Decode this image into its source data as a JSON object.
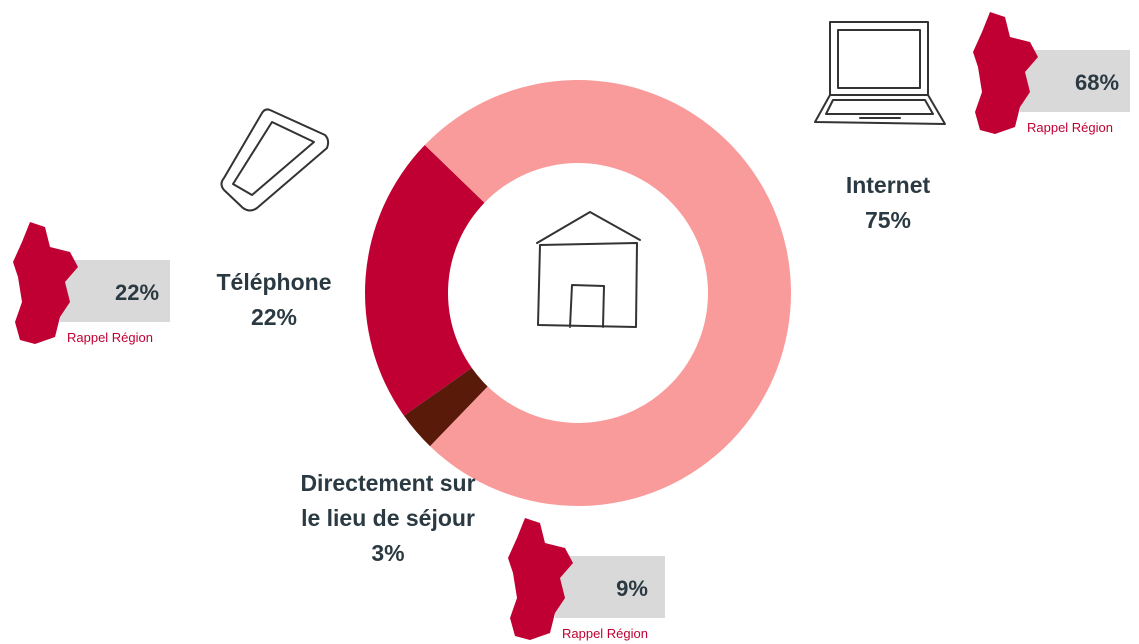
{
  "chart_data": {
    "type": "pie",
    "categories": [
      "Internet",
      "Directement sur le lieu de séjour",
      "Téléphone"
    ],
    "values": [
      75,
      3,
      22
    ],
    "value_labels": [
      "75%",
      "3%",
      "22%"
    ],
    "colors": [
      "#f99b9b",
      "#5a1a0a",
      "#c00032"
    ],
    "region_recall": {
      "label": "Rappel Région",
      "values": [
        68,
        9,
        22
      ],
      "value_labels": [
        "68%",
        "9%",
        "22%"
      ]
    }
  }
}
